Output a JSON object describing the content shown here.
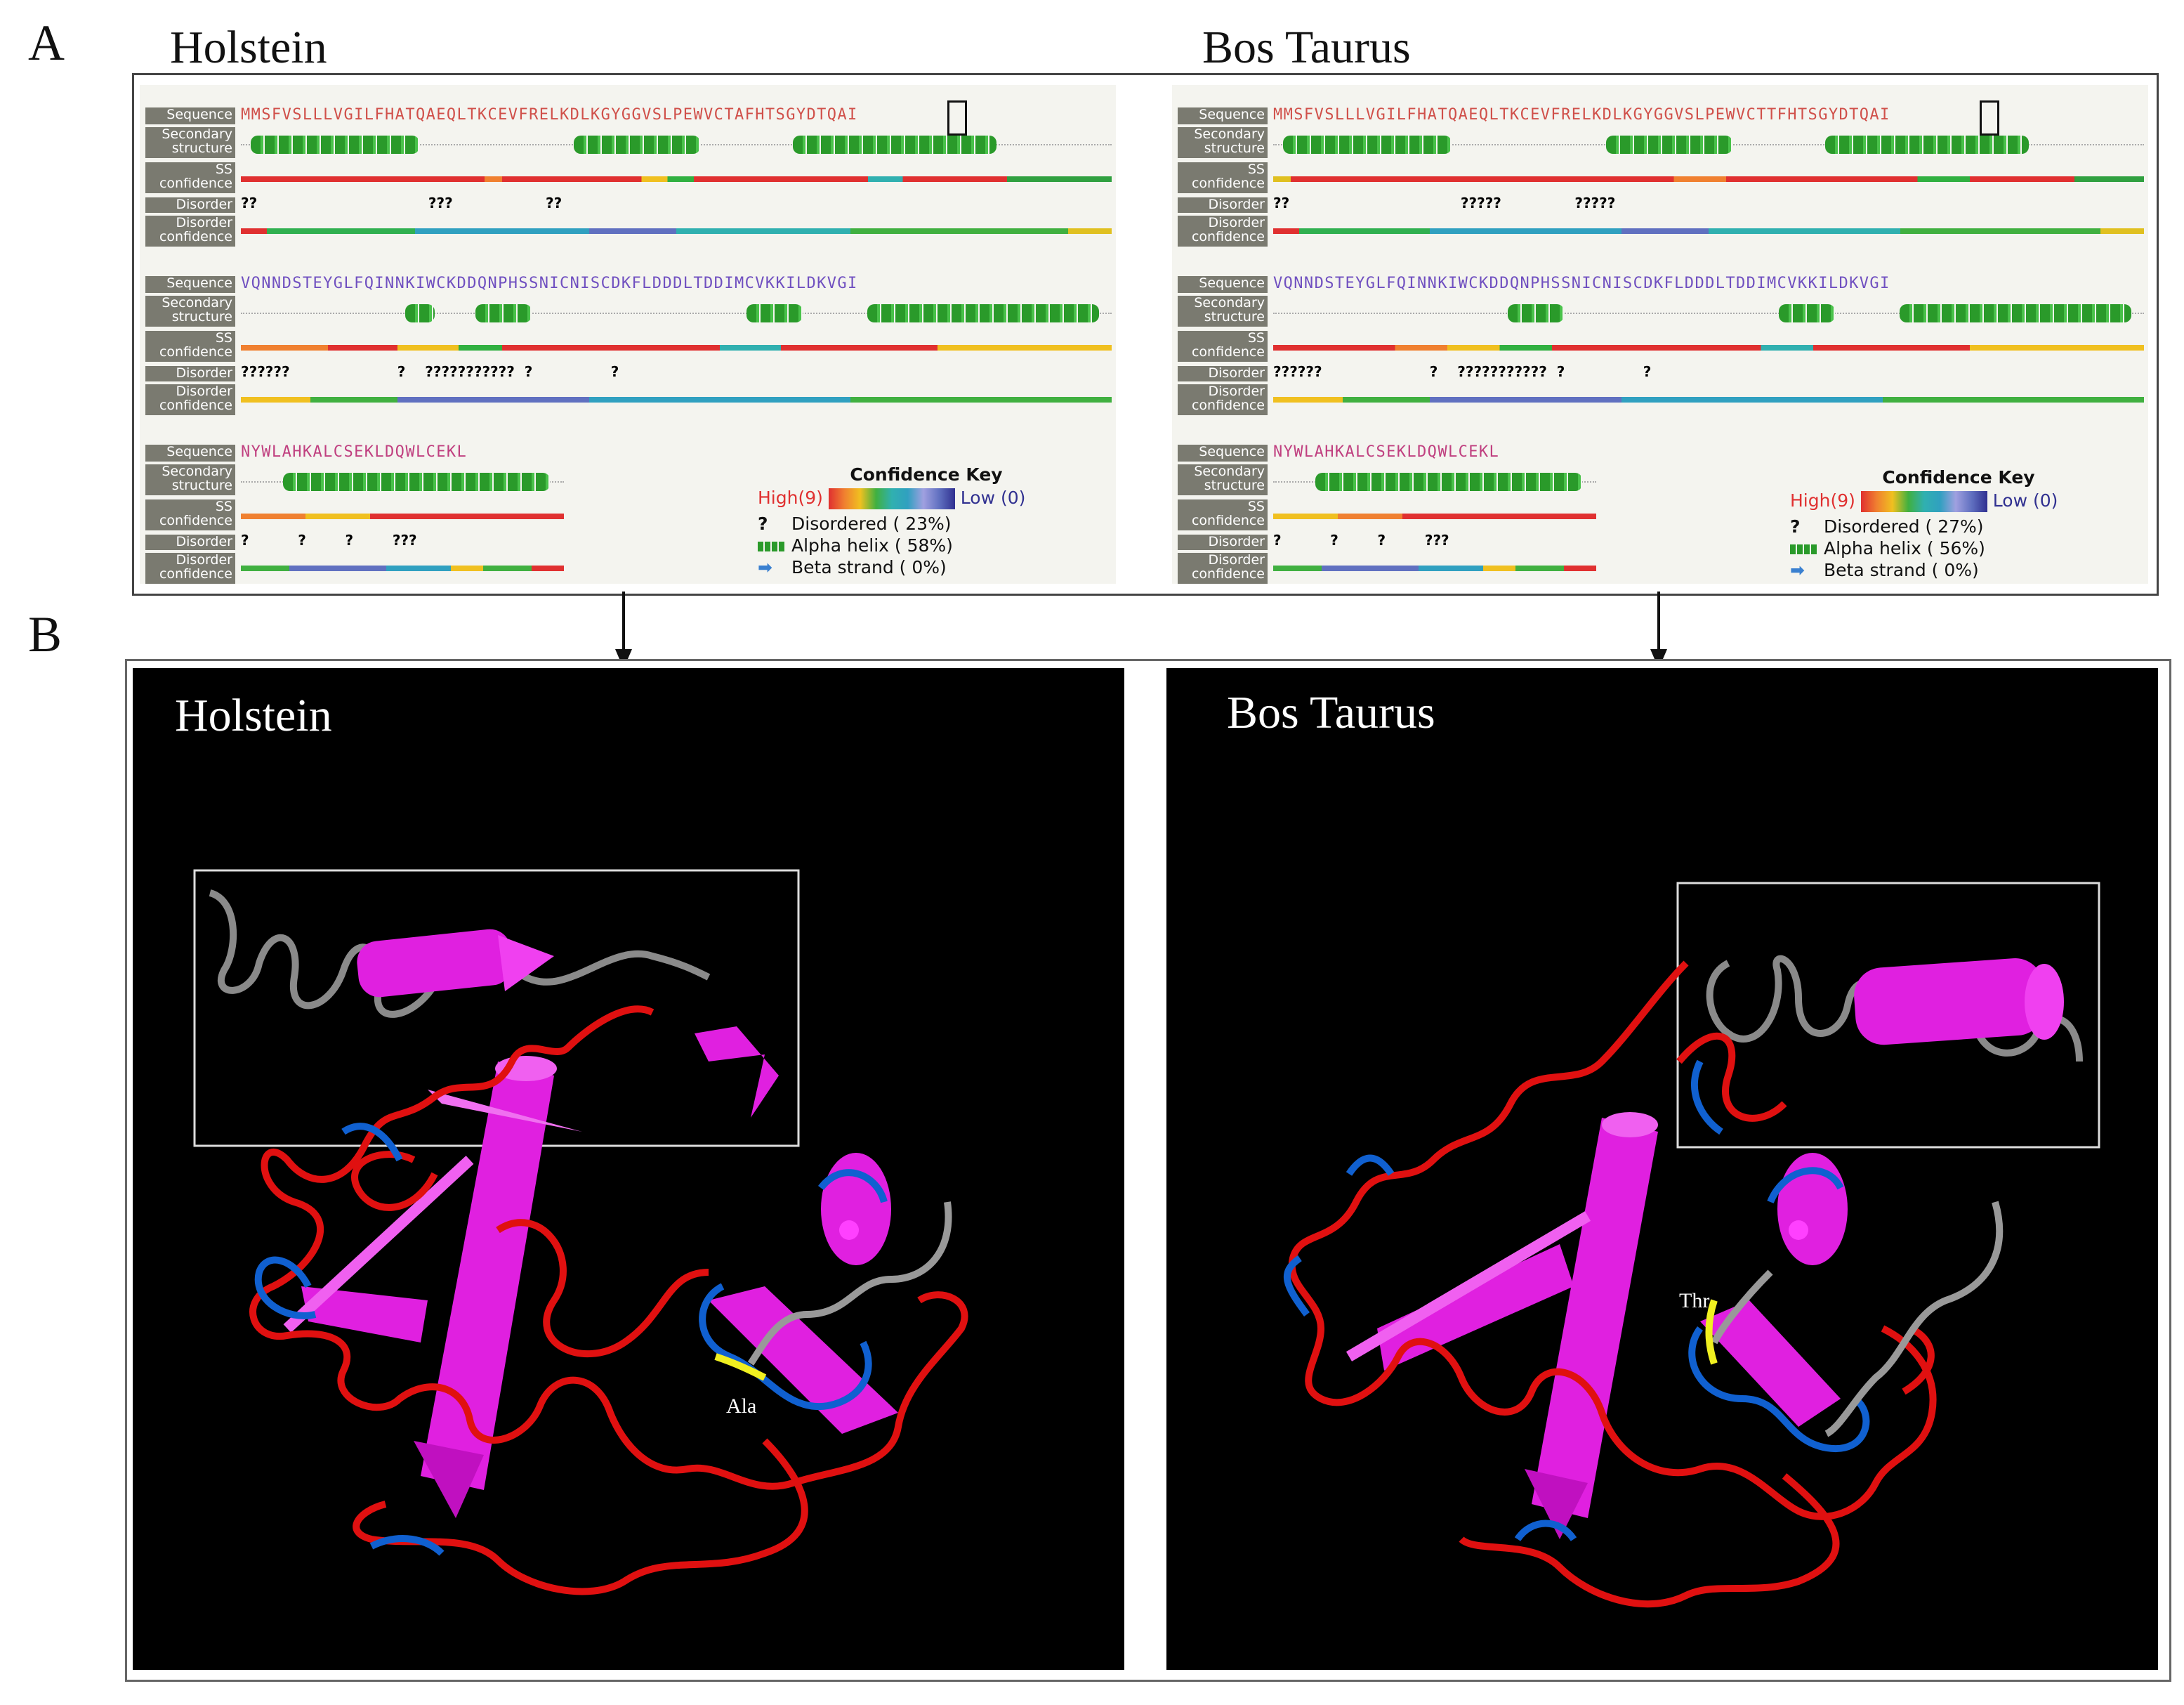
{
  "panel_a": {
    "letter": "A",
    "left_title": "Holstein",
    "right_title": "Bos Taurus",
    "track_labels": {
      "sequence": "Sequence",
      "secondary_1": "Secondary",
      "secondary_2": "structure",
      "ss_1": "SS",
      "ss_2": "confidence",
      "disorder": "Disorder",
      "disorder_conf_1": "Disorder",
      "disorder_conf_2": "confidence"
    },
    "holstein": {
      "rows": [
        {
          "seq": "MMSFVSLLLVGILFHATQAEQLTKCEVFRELKDLKGYGGVSLPEWVCTAFHTSGYDTQAI",
          "disorder": "??                                   ???                   ??"
        },
        {
          "seq": "VQNNDSTEYGLFQINNKIWCKDDQNPHSSNICNISCDKFLDDDLTDDIMCVKKILDKVGI",
          "disorder": "??????                      ?    ???????????  ?                ?"
        },
        {
          "seq": "NYWLAHKALCSEKLDQWLCEKL",
          "disorder": "?          ?        ?        ???"
        }
      ],
      "key_title": "Confidence Key",
      "key_high": "High(9)",
      "key_low": "Low (0)",
      "disordered": "Disordered ( 23%)",
      "alpha": "Alpha helix ( 58%)",
      "beta": "Beta strand ( 0%)"
    },
    "bos": {
      "rows": [
        {
          "seq": "MMSFVSLLLVGILFHATQAEQLTKCEVFRELKDLKGYGGVSLPEWVCTTFHTSGYDTQAI",
          "disorder": "??                                   ?????               ?????"
        },
        {
          "seq": "VQNNDSTEYGLFQINNKIWCKDDQNPHSSNICNISCDKFLDDDLTDDIMCVKKILDKVGI",
          "disorder": "??????                      ?    ???????????  ?                ?"
        },
        {
          "seq": "NYWLAHKALCSEKLDQWLCEKL",
          "disorder": "?          ?        ?        ???"
        }
      ],
      "key_title": "Confidence Key",
      "key_high": "High(9)",
      "key_low": "Low (0)",
      "disordered": "Disordered ( 27%)",
      "alpha": "Alpha helix ( 56%)",
      "beta": "Beta strand ( 0%)"
    }
  },
  "panel_b": {
    "letter": "B",
    "left_title": "Holstein",
    "right_title": "Bos Taurus",
    "left_residue": "Ala",
    "right_residue": "Thr"
  },
  "colors": {
    "helix_magenta": "#e020e0",
    "coil_red": "#e01010",
    "coil_blue": "#1060d0",
    "coil_grey": "#888888",
    "highlight_yellow": "#f0f020"
  }
}
